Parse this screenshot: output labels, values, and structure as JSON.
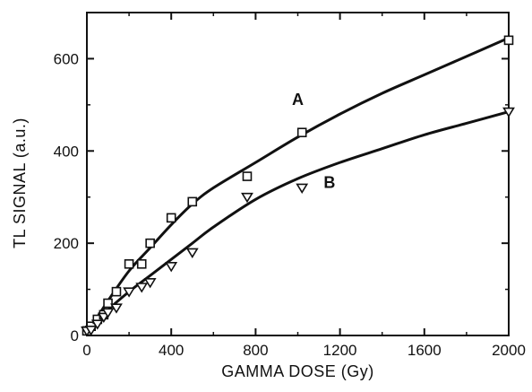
{
  "chart_data": {
    "type": "scatter",
    "title": "",
    "xlabel": "GAMMA DOSE (Gy)",
    "ylabel": "TL SIGNAL (a.u.)",
    "xlim": [
      0,
      2000
    ],
    "ylim": [
      0,
      700
    ],
    "xticks": [
      0,
      400,
      800,
      1200,
      1600,
      2000
    ],
    "yticks": [
      0,
      200,
      400,
      600
    ],
    "grid": false,
    "series": [
      {
        "name": "A",
        "marker": "square",
        "points": [
          [
            0,
            10
          ],
          [
            20,
            20
          ],
          [
            50,
            35
          ],
          [
            80,
            45
          ],
          [
            100,
            70
          ],
          [
            140,
            95
          ],
          [
            200,
            155
          ],
          [
            260,
            155
          ],
          [
            300,
            200
          ],
          [
            400,
            255
          ],
          [
            500,
            290
          ],
          [
            760,
            345
          ],
          [
            1020,
            440
          ],
          [
            2000,
            640
          ]
        ],
        "fit_curve": [
          [
            0,
            5
          ],
          [
            100,
            75
          ],
          [
            200,
            140
          ],
          [
            300,
            190
          ],
          [
            400,
            240
          ],
          [
            500,
            285
          ],
          [
            600,
            320
          ],
          [
            800,
            375
          ],
          [
            1000,
            430
          ],
          [
            1200,
            480
          ],
          [
            1400,
            525
          ],
          [
            1600,
            565
          ],
          [
            1800,
            605
          ],
          [
            2000,
            645
          ]
        ]
      },
      {
        "name": "B",
        "marker": "triangle-down",
        "points": [
          [
            0,
            10
          ],
          [
            20,
            12
          ],
          [
            50,
            25
          ],
          [
            80,
            40
          ],
          [
            100,
            50
          ],
          [
            140,
            60
          ],
          [
            200,
            95
          ],
          [
            260,
            105
          ],
          [
            300,
            115
          ],
          [
            400,
            150
          ],
          [
            500,
            180
          ],
          [
            760,
            300
          ],
          [
            1020,
            320
          ],
          [
            2000,
            485
          ]
        ],
        "fit_curve": [
          [
            0,
            3
          ],
          [
            100,
            55
          ],
          [
            200,
            95
          ],
          [
            300,
            130
          ],
          [
            400,
            165
          ],
          [
            500,
            200
          ],
          [
            600,
            235
          ],
          [
            800,
            295
          ],
          [
            1000,
            340
          ],
          [
            1200,
            375
          ],
          [
            1400,
            405
          ],
          [
            1600,
            435
          ],
          [
            1800,
            460
          ],
          [
            2000,
            485
          ]
        ]
      }
    ],
    "annotations": [
      {
        "text": "A",
        "x": 1000,
        "y": 500
      },
      {
        "text": "B",
        "x": 1150,
        "y": 320
      }
    ]
  }
}
